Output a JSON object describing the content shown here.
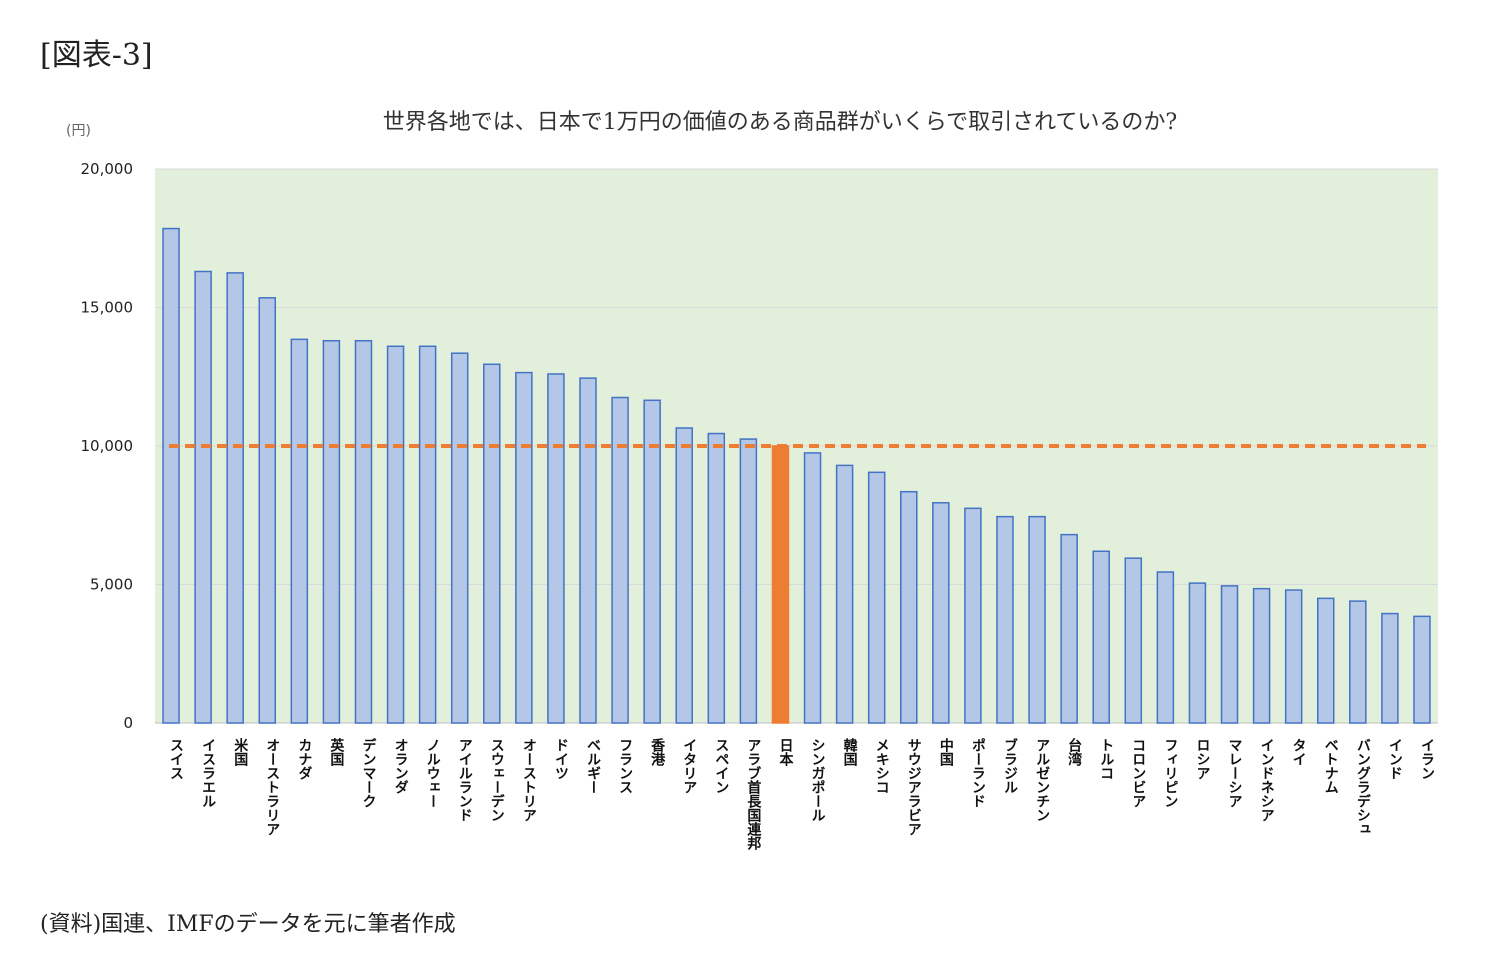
{
  "figure_label": "[図表-3]",
  "source_note": "(資料)国連、IMFのデータを元に筆者作成",
  "colors": {
    "plot_background": "#e2efda",
    "bar": "#b4c7e7",
    "bar_border": "#4472c4",
    "highlight_bar": "#ed7d31",
    "reference_line": "#ed7d31",
    "gridline": "#d9d9d9"
  },
  "chart_data": {
    "type": "bar",
    "title": "世界各地では、日本で1万円の価値のある商品群がいくらで取引されているのか?",
    "ylabel": "(円)",
    "xlabel": "",
    "ylim": [
      0,
      20000
    ],
    "yticks": [
      0,
      5000,
      10000,
      15000,
      20000
    ],
    "ytick_labels": [
      "0",
      "5,000",
      "10,000",
      "15,000",
      "20,000"
    ],
    "grid": true,
    "legend": "none",
    "highlight_category": "日本",
    "reference_line": {
      "y": 10000,
      "style": "dashed"
    },
    "categories": [
      "スイス",
      "イスラエル",
      "米国",
      "オーストラリア",
      "カナダ",
      "英国",
      "デンマーク",
      "オランダ",
      "ノルウェー",
      "アイルランド",
      "スウェーデン",
      "オーストリア",
      "ドイツ",
      "ベルギー",
      "フランス",
      "香港",
      "イタリア",
      "スペイン",
      "アラブ首長国連邦",
      "日本",
      "シンガポール",
      "韓国",
      "メキシコ",
      "サウジアラビア",
      "中国",
      "ポーランド",
      "ブラジル",
      "アルゼンチン",
      "台湾",
      "トルコ",
      "コロンビア",
      "フィリピン",
      "ロシア",
      "マレーシア",
      "インドネシア",
      "タイ",
      "ベトナム",
      "バングラデシュ",
      "インド",
      "イラン"
    ],
    "values": [
      17850,
      16300,
      16250,
      15350,
      13850,
      13800,
      13800,
      13600,
      13600,
      13350,
      12950,
      12650,
      12600,
      12450,
      11750,
      11650,
      10650,
      10450,
      10250,
      10000,
      9750,
      9300,
      9050,
      8350,
      7950,
      7750,
      7450,
      7450,
      6800,
      6200,
      5950,
      5450,
      5050,
      4950,
      4850,
      4800,
      4500,
      4400,
      3950,
      3850
    ]
  }
}
